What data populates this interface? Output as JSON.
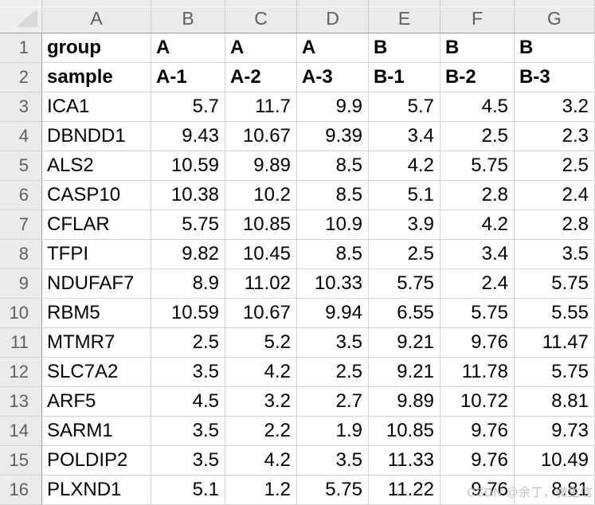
{
  "sheet": {
    "corner_label": "",
    "column_headers": [
      "A",
      "B",
      "C",
      "D",
      "E",
      "F",
      "G"
    ],
    "rows": [
      {
        "num": "1",
        "bold": true,
        "cells": [
          "group",
          "A",
          "A",
          "A",
          "B",
          "B",
          "B"
        ]
      },
      {
        "num": "2",
        "bold": true,
        "cells": [
          "sample",
          "A-1",
          "A-2",
          "A-3",
          "B-1",
          "B-2",
          "B-3"
        ]
      },
      {
        "num": "3",
        "bold": false,
        "cells": [
          "ICA1",
          "5.7",
          "11.7",
          "9.9",
          "5.7",
          "4.5",
          "3.2"
        ]
      },
      {
        "num": "4",
        "bold": false,
        "cells": [
          "DBNDD1",
          "9.43",
          "10.67",
          "9.39",
          "3.4",
          "2.5",
          "2.3"
        ]
      },
      {
        "num": "5",
        "bold": false,
        "cells": [
          "ALS2",
          "10.59",
          "9.89",
          "8.5",
          "4.2",
          "5.75",
          "2.5"
        ]
      },
      {
        "num": "6",
        "bold": false,
        "cells": [
          "CASP10",
          "10.38",
          "10.2",
          "8.5",
          "5.1",
          "2.8",
          "2.4"
        ]
      },
      {
        "num": "7",
        "bold": false,
        "cells": [
          "CFLAR",
          "5.75",
          "10.85",
          "10.9",
          "3.9",
          "4.2",
          "2.8"
        ]
      },
      {
        "num": "8",
        "bold": false,
        "cells": [
          "TFPI",
          "9.82",
          "10.45",
          "8.5",
          "2.5",
          "3.4",
          "3.5"
        ]
      },
      {
        "num": "9",
        "bold": false,
        "cells": [
          "NDUFAF7",
          "8.9",
          "11.02",
          "10.33",
          "5.75",
          "2.4",
          "5.75"
        ]
      },
      {
        "num": "10",
        "bold": false,
        "cells": [
          "RBM5",
          "10.59",
          "10.67",
          "9.94",
          "6.55",
          "5.75",
          "5.55"
        ]
      },
      {
        "num": "11",
        "bold": false,
        "cells": [
          "MTMR7",
          "2.5",
          "5.2",
          "3.5",
          "9.21",
          "9.76",
          "11.47"
        ]
      },
      {
        "num": "12",
        "bold": false,
        "cells": [
          "SLC7A2",
          "3.5",
          "4.2",
          "2.5",
          "9.21",
          "11.78",
          "5.75"
        ]
      },
      {
        "num": "13",
        "bold": false,
        "cells": [
          "ARF5",
          "4.5",
          "3.2",
          "2.7",
          "9.89",
          "10.72",
          "8.81"
        ]
      },
      {
        "num": "14",
        "bold": false,
        "cells": [
          "SARM1",
          "3.5",
          "2.2",
          "1.9",
          "10.85",
          "9.76",
          "9.73"
        ]
      },
      {
        "num": "15",
        "bold": false,
        "cells": [
          "POLDIP2",
          "3.5",
          "4.2",
          "3.5",
          "11.33",
          "9.76",
          "10.49"
        ]
      },
      {
        "num": "16",
        "bold": false,
        "cells": [
          "PLXND1",
          "5.1",
          "1.2",
          "5.75",
          "11.22",
          "9.76",
          "8.81"
        ]
      }
    ]
  },
  "watermark": {
    "text": "CSDN @余丁，微生信"
  },
  "colors": {
    "header_bg": "#ebebeb",
    "header_text": "#5f5f5f",
    "gridline": "#d5d5d5",
    "header_border": "#9f9f9f",
    "cell_text": "#000000",
    "watermark_text": "#b4b4b4"
  }
}
